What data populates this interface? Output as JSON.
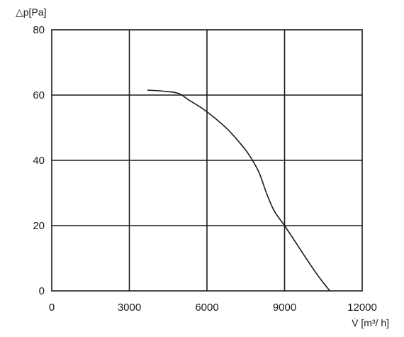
{
  "chart_data": {
    "type": "line",
    "title": "",
    "ylabel": "△p[Pa]",
    "xlabel": "V̇ [m³/ h]",
    "xlim": [
      0,
      12000
    ],
    "ylim": [
      0,
      80
    ],
    "x_ticks": [
      "0",
      "3000",
      "6000",
      "9000",
      "12000"
    ],
    "y_ticks": [
      "0",
      "20",
      "40",
      "60",
      "80"
    ],
    "grid": true,
    "legend": "none",
    "series": [
      {
        "x": [
          3700,
          4300,
          4900,
          5300,
          5800,
          6300,
          6800,
          7200,
          7600,
          8000,
          8300,
          8600,
          9000,
          9500,
          10000,
          10400,
          10750
        ],
        "y": [
          61.5,
          61.2,
          60.5,
          58.5,
          56,
          53,
          49.5,
          46,
          42,
          36.5,
          30,
          24.5,
          20,
          14,
          8,
          3.5,
          0
        ]
      }
    ]
  }
}
